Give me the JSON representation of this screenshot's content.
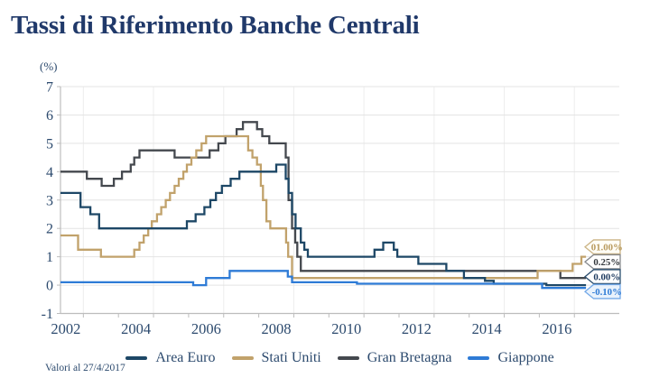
{
  "title": "Tassi di Riferimento Banche Centrali",
  "y_unit": "(%)",
  "footer": "Valori al 27/4/2017",
  "colors": {
    "title_text": "#20396a",
    "axis_text": "#2c4a6e",
    "grid_horizontal": "#e4e4e4",
    "grid_vertical": "#ededed",
    "axis_line": "#bdbdbd",
    "area_euro": "#1d4766",
    "stati_uniti": "#c1a26b",
    "gran_bretagna": "#44484e",
    "giappone": "#2e7bd6"
  },
  "chart_data": {
    "type": "line",
    "step": true,
    "title": "Tassi di Riferimento Banche Centrali",
    "ylabel": "(%)",
    "ylim": [
      -1,
      7
    ],
    "xlim": [
      2002,
      2018.3
    ],
    "x_end": 2017.33,
    "grid": true,
    "legend_position": "bottom",
    "y_tick_labels": [
      "7",
      "6",
      "5",
      "4",
      "3",
      "2",
      "1",
      "0",
      "-1"
    ],
    "y_tick_values": [
      7,
      6,
      5,
      4,
      3,
      2,
      1,
      0,
      -1
    ],
    "x_tick_label_years": [
      2002,
      2004,
      2006,
      2008,
      2010,
      2012,
      2014,
      2016
    ],
    "x_minor_tick_years": [
      2003,
      2004,
      2005,
      2006,
      2007,
      2008,
      2009,
      2010,
      2011,
      2012,
      2013,
      2014,
      2015,
      2016,
      2017
    ],
    "x_grid_years": [
      2003,
      2005,
      2007,
      2009,
      2011,
      2013,
      2015,
      2017
    ],
    "series": [
      {
        "name": "Gran Bretagna",
        "color": "#44484e",
        "points": [
          [
            2002,
            4.0
          ],
          [
            2003.1,
            3.75
          ],
          [
            2003.52,
            3.5
          ],
          [
            2003.87,
            3.75
          ],
          [
            2004.1,
            4.0
          ],
          [
            2004.35,
            4.25
          ],
          [
            2004.45,
            4.5
          ],
          [
            2004.6,
            4.75
          ],
          [
            2005.6,
            4.5
          ],
          [
            2006.6,
            4.75
          ],
          [
            2006.85,
            5.0
          ],
          [
            2007.05,
            5.25
          ],
          [
            2007.37,
            5.5
          ],
          [
            2007.55,
            5.75
          ],
          [
            2007.95,
            5.5
          ],
          [
            2008.1,
            5.25
          ],
          [
            2008.3,
            5.0
          ],
          [
            2008.77,
            4.5
          ],
          [
            2008.85,
            3.0
          ],
          [
            2008.95,
            2.0
          ],
          [
            2009.04,
            1.5
          ],
          [
            2009.1,
            1.0
          ],
          [
            2009.2,
            0.5
          ],
          [
            2016.6,
            0.25
          ]
        ]
      },
      {
        "name": "Stati Uniti",
        "color": "#c1a26b",
        "points": [
          [
            2002,
            1.75
          ],
          [
            2002.85,
            1.25
          ],
          [
            2003.5,
            1.0
          ],
          [
            2004.45,
            1.25
          ],
          [
            2004.6,
            1.5
          ],
          [
            2004.72,
            1.75
          ],
          [
            2004.85,
            2.0
          ],
          [
            2004.95,
            2.25
          ],
          [
            2005.1,
            2.5
          ],
          [
            2005.22,
            2.75
          ],
          [
            2005.35,
            3.0
          ],
          [
            2005.47,
            3.25
          ],
          [
            2005.6,
            3.5
          ],
          [
            2005.72,
            3.75
          ],
          [
            2005.85,
            4.0
          ],
          [
            2005.95,
            4.25
          ],
          [
            2006.08,
            4.5
          ],
          [
            2006.22,
            4.75
          ],
          [
            2006.37,
            5.0
          ],
          [
            2006.5,
            5.25
          ],
          [
            2007.7,
            4.75
          ],
          [
            2007.82,
            4.5
          ],
          [
            2007.95,
            4.25
          ],
          [
            2008.06,
            3.5
          ],
          [
            2008.12,
            3.0
          ],
          [
            2008.22,
            2.25
          ],
          [
            2008.33,
            2.0
          ],
          [
            2008.78,
            1.5
          ],
          [
            2008.84,
            1.0
          ],
          [
            2008.95,
            0.25
          ],
          [
            2015.95,
            0.5
          ],
          [
            2016.95,
            0.75
          ],
          [
            2017.2,
            1.0
          ]
        ]
      },
      {
        "name": "Area Euro",
        "color": "#1d4766",
        "points": [
          [
            2002,
            3.25
          ],
          [
            2002.92,
            2.75
          ],
          [
            2003.2,
            2.5
          ],
          [
            2003.45,
            2.0
          ],
          [
            2005.95,
            2.25
          ],
          [
            2006.2,
            2.5
          ],
          [
            2006.45,
            2.75
          ],
          [
            2006.62,
            3.0
          ],
          [
            2006.78,
            3.25
          ],
          [
            2006.95,
            3.5
          ],
          [
            2007.2,
            3.75
          ],
          [
            2007.45,
            4.0
          ],
          [
            2008.5,
            4.25
          ],
          [
            2008.77,
            3.75
          ],
          [
            2008.85,
            3.25
          ],
          [
            2008.95,
            2.5
          ],
          [
            2009.05,
            2.0
          ],
          [
            2009.2,
            1.5
          ],
          [
            2009.3,
            1.25
          ],
          [
            2009.4,
            1.0
          ],
          [
            2011.3,
            1.25
          ],
          [
            2011.55,
            1.5
          ],
          [
            2011.85,
            1.25
          ],
          [
            2011.95,
            1.0
          ],
          [
            2012.55,
            0.75
          ],
          [
            2013.35,
            0.5
          ],
          [
            2013.85,
            0.25
          ],
          [
            2014.45,
            0.15
          ],
          [
            2014.7,
            0.05
          ],
          [
            2016.2,
            0.0
          ]
        ]
      },
      {
        "name": "Giappone",
        "color": "#2e7bd6",
        "points": [
          [
            2002,
            0.1
          ],
          [
            2006.13,
            0.0
          ],
          [
            2006.5,
            0.25
          ],
          [
            2007.17,
            0.5
          ],
          [
            2008.83,
            0.3
          ],
          [
            2008.95,
            0.1
          ],
          [
            2010.8,
            0.05
          ],
          [
            2016.08,
            -0.1
          ]
        ]
      }
    ],
    "end_labels": [
      {
        "text": "01.00%",
        "series": "Stati Uniti",
        "value": 1.0,
        "border": "#cbb485",
        "text_color": "#b89a5d",
        "bg": "#fffdf6"
      },
      {
        "text": "0.25%",
        "series": "Gran Bretagna",
        "value": 0.25,
        "border": "#85888c",
        "text_color": "#33373c",
        "bg": "#ffffff"
      },
      {
        "text": "0.00%",
        "series": "Area Euro",
        "value": 0.0,
        "border": "#2a4d6e",
        "text_color": "#1d3a5f",
        "bg": "#ffffff"
      },
      {
        "text": "-0.10%",
        "series": "Giappone",
        "value": -0.1,
        "border": "#74a9e8",
        "text_color": "#2e7bd6",
        "bg": "#e9f2fc"
      }
    ]
  },
  "legend": {
    "items": [
      {
        "label": "Area Euro"
      },
      {
        "label": "Stati Uniti"
      },
      {
        "label": "Gran Bretagna"
      },
      {
        "label": "Giappone"
      }
    ]
  }
}
